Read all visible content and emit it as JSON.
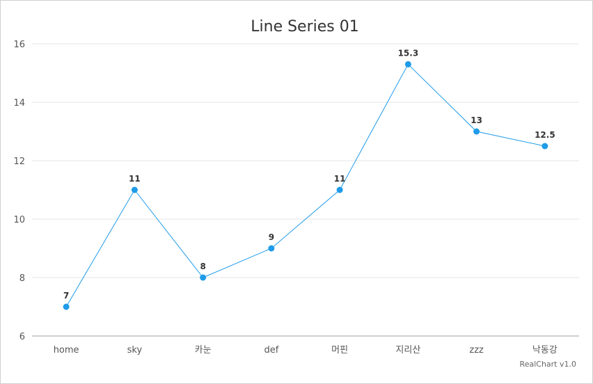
{
  "chart_data": {
    "type": "line",
    "title": "Line Series 01",
    "categories": [
      "home",
      "sky",
      "카눈",
      "def",
      "머핀",
      "지리산",
      "zzz",
      "낙동강"
    ],
    "series": [
      {
        "values": [
          7,
          11,
          8,
          9,
          11,
          15.3,
          13,
          12.5
        ],
        "color": "#1e9be9"
      }
    ],
    "data_labels": [
      "7",
      "11",
      "8",
      "9",
      "11",
      "15.3",
      "13",
      "12.5"
    ],
    "ylim": [
      6,
      16
    ],
    "yticks": [
      "6",
      "8",
      "10",
      "12",
      "14",
      "16"
    ],
    "grid": true,
    "legend": "none"
  },
  "credit": "RealChart v1.0"
}
